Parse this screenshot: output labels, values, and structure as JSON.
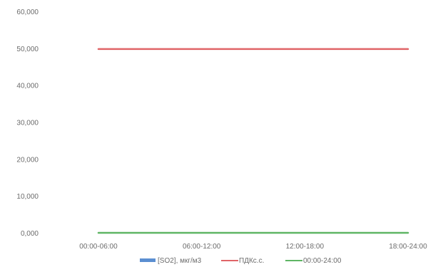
{
  "chart_data": {
    "type": "line",
    "categories": [
      "00:00-06:00",
      "06:00-12:00",
      "12:00-18:00",
      "18:00-24:00"
    ],
    "ylim": [
      0,
      60
    ],
    "yticks": [
      0,
      10,
      20,
      30,
      40,
      50,
      60
    ],
    "ytick_labels": [
      "0,000",
      "10,000",
      "20,000",
      "30,000",
      "40,000",
      "50,000",
      "60,000"
    ],
    "grid": false,
    "legend_position": "bottom",
    "series": [
      {
        "name": "[SO2], мкг/м3",
        "type": "bar",
        "color": "#5b8fd1",
        "values": [
          0.0,
          0.0,
          0.0,
          0.0
        ]
      },
      {
        "name": "ПДКс.с.",
        "type": "line",
        "color": "#e06467",
        "values": [
          50,
          50,
          50,
          50
        ]
      },
      {
        "name": "00:00-24:00",
        "type": "line",
        "color": "#5fb564",
        "values": [
          0.2,
          0.2,
          0.2,
          0.2
        ]
      }
    ]
  }
}
